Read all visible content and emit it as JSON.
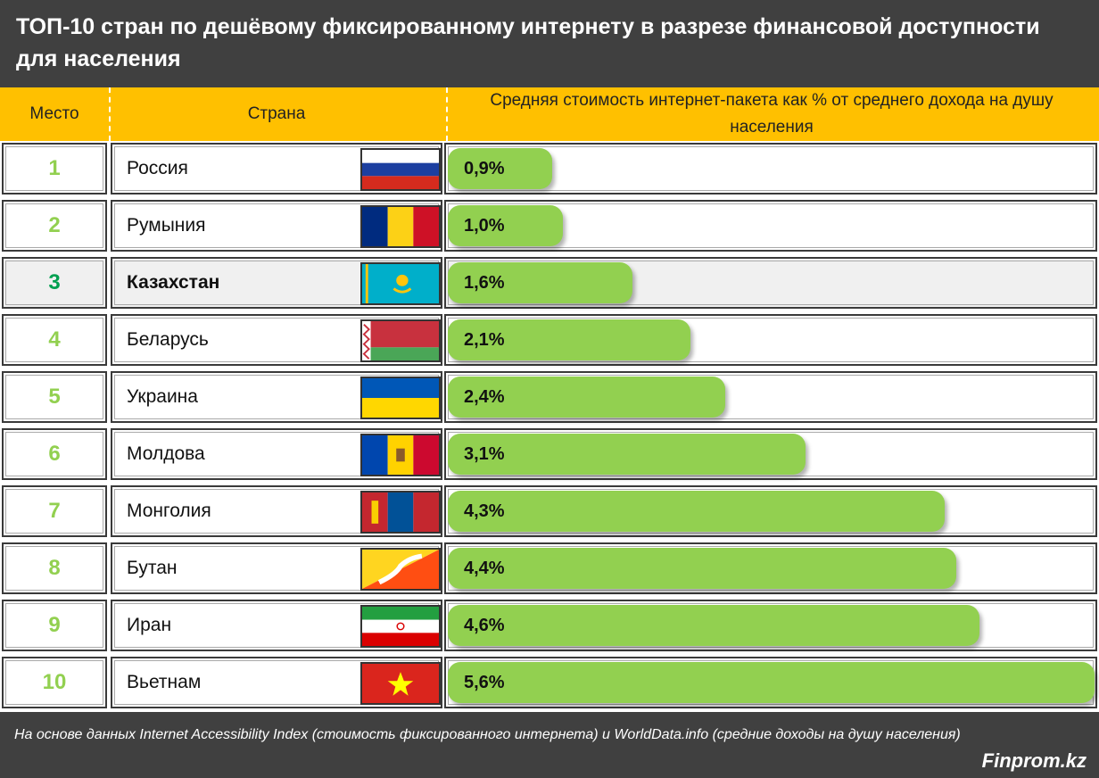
{
  "title": "ТОП-10 стран по дешёвому фиксированному интернету в разрезе финансовой доступности для населения",
  "footer": {
    "source": "На основе данных Internet Accessibility Index (стоимость фиксированного интернета) и WorldData.info (средние доходы на душу населения)",
    "brand": "Finprom.kz"
  },
  "colors": {
    "bar": "#92D050",
    "header": "#FFC000",
    "title_bg": "#404040",
    "highlight_rank": "#00A050"
  },
  "chart_data": {
    "type": "bar",
    "orientation": "horizontal",
    "headers": [
      "Место",
      "Страна",
      "Средняя стоимость интернет-пакета как % от среднего дохода на душу населения"
    ],
    "categories": [
      "Россия",
      "Румыния",
      "Казахстан",
      "Беларусь",
      "Украина",
      "Молдова",
      "Монголия",
      "Бутан",
      "Иран",
      "Вьетнам"
    ],
    "ranks": [
      "1",
      "2",
      "3",
      "4",
      "5",
      "6",
      "7",
      "8",
      "9",
      "10"
    ],
    "values": [
      0.9,
      1.0,
      1.6,
      2.1,
      2.4,
      3.1,
      4.3,
      4.4,
      4.6,
      5.6
    ],
    "labels": [
      "0,9%",
      "1,0%",
      "1,6%",
      "2,1%",
      "2,4%",
      "3,1%",
      "4,3%",
      "4,4%",
      "4,6%",
      "5,6%"
    ],
    "flags": [
      "russia-flag",
      "romania-flag",
      "kazakhstan-flag",
      "belarus-flag",
      "ukraine-flag",
      "moldova-flag",
      "mongolia-flag",
      "bhutan-flag",
      "iran-flag",
      "vietnam-flag"
    ],
    "highlighted": "Казахстан"
  }
}
